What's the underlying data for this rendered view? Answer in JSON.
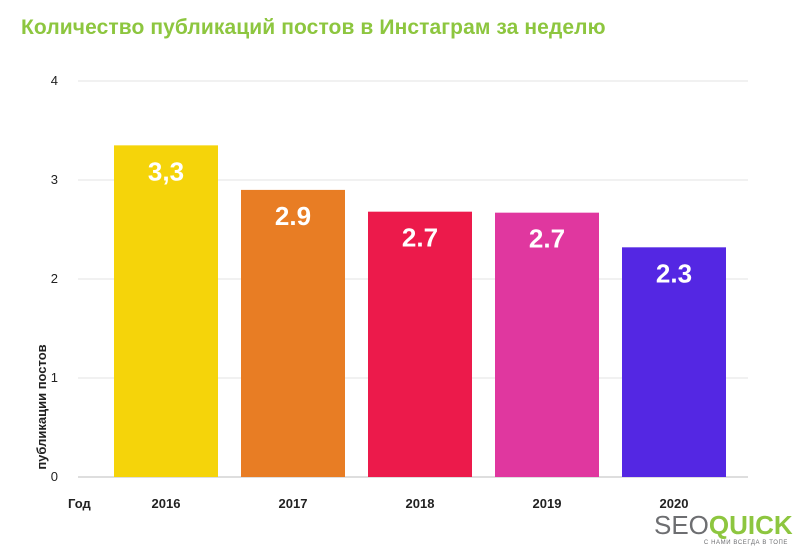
{
  "title": "Количество публикаций постов в Инстаграм за неделю",
  "chart_data": {
    "type": "bar",
    "title": "Количество публикаций постов в Инстаграм за неделю",
    "xlabel": "Год",
    "ylabel": "публикации постов",
    "categories": [
      "2016",
      "2017",
      "2018",
      "2019",
      "2020"
    ],
    "values": [
      3.35,
      2.9,
      2.68,
      2.67,
      2.32
    ],
    "data_labels": [
      "3,3",
      "2.9",
      "2.7",
      "2.7",
      "2.3"
    ],
    "colors": [
      "#f5d40a",
      "#e87d24",
      "#ec1a4b",
      "#e0379f",
      "#5427e3"
    ],
    "yticks": [
      "0",
      "1",
      "2",
      "3",
      "4"
    ],
    "ylim": [
      0,
      4
    ],
    "grid": true
  },
  "logo": {
    "part1": "SEO",
    "part2": "QUICK",
    "tagline": "С НАМИ ВСЕГДА В ТОПЕ"
  }
}
